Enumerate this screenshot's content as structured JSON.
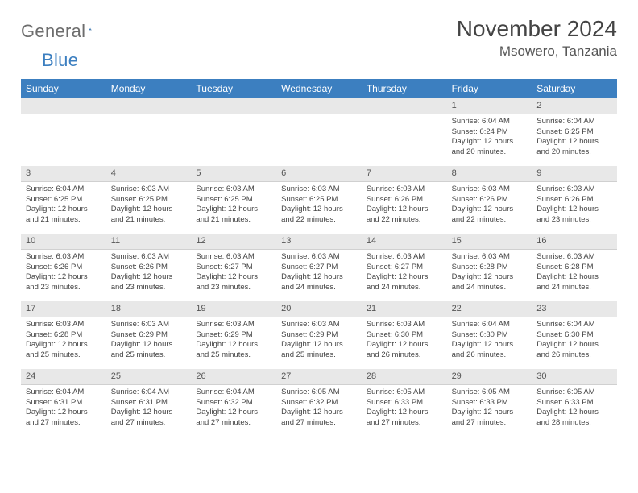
{
  "logo": {
    "word1": "General",
    "word2": "Blue"
  },
  "title": "November 2024",
  "location": "Msowero, Tanzania",
  "dayNames": [
    "Sunday",
    "Monday",
    "Tuesday",
    "Wednesday",
    "Thursday",
    "Friday",
    "Saturday"
  ],
  "colors": {
    "headerBg": "#3c7fc0",
    "headerText": "#ffffff",
    "dayNumBg": "#e8e8e8",
    "bodyText": "#444444"
  },
  "startOffset": 5,
  "days": [
    {
      "n": 1,
      "sr": "6:04 AM",
      "ss": "6:24 PM",
      "dl": "12 hours and 20 minutes."
    },
    {
      "n": 2,
      "sr": "6:04 AM",
      "ss": "6:25 PM",
      "dl": "12 hours and 20 minutes."
    },
    {
      "n": 3,
      "sr": "6:04 AM",
      "ss": "6:25 PM",
      "dl": "12 hours and 21 minutes."
    },
    {
      "n": 4,
      "sr": "6:03 AM",
      "ss": "6:25 PM",
      "dl": "12 hours and 21 minutes."
    },
    {
      "n": 5,
      "sr": "6:03 AM",
      "ss": "6:25 PM",
      "dl": "12 hours and 21 minutes."
    },
    {
      "n": 6,
      "sr": "6:03 AM",
      "ss": "6:25 PM",
      "dl": "12 hours and 22 minutes."
    },
    {
      "n": 7,
      "sr": "6:03 AM",
      "ss": "6:26 PM",
      "dl": "12 hours and 22 minutes."
    },
    {
      "n": 8,
      "sr": "6:03 AM",
      "ss": "6:26 PM",
      "dl": "12 hours and 22 minutes."
    },
    {
      "n": 9,
      "sr": "6:03 AM",
      "ss": "6:26 PM",
      "dl": "12 hours and 23 minutes."
    },
    {
      "n": 10,
      "sr": "6:03 AM",
      "ss": "6:26 PM",
      "dl": "12 hours and 23 minutes."
    },
    {
      "n": 11,
      "sr": "6:03 AM",
      "ss": "6:26 PM",
      "dl": "12 hours and 23 minutes."
    },
    {
      "n": 12,
      "sr": "6:03 AM",
      "ss": "6:27 PM",
      "dl": "12 hours and 23 minutes."
    },
    {
      "n": 13,
      "sr": "6:03 AM",
      "ss": "6:27 PM",
      "dl": "12 hours and 24 minutes."
    },
    {
      "n": 14,
      "sr": "6:03 AM",
      "ss": "6:27 PM",
      "dl": "12 hours and 24 minutes."
    },
    {
      "n": 15,
      "sr": "6:03 AM",
      "ss": "6:28 PM",
      "dl": "12 hours and 24 minutes."
    },
    {
      "n": 16,
      "sr": "6:03 AM",
      "ss": "6:28 PM",
      "dl": "12 hours and 24 minutes."
    },
    {
      "n": 17,
      "sr": "6:03 AM",
      "ss": "6:28 PM",
      "dl": "12 hours and 25 minutes."
    },
    {
      "n": 18,
      "sr": "6:03 AM",
      "ss": "6:29 PM",
      "dl": "12 hours and 25 minutes."
    },
    {
      "n": 19,
      "sr": "6:03 AM",
      "ss": "6:29 PM",
      "dl": "12 hours and 25 minutes."
    },
    {
      "n": 20,
      "sr": "6:03 AM",
      "ss": "6:29 PM",
      "dl": "12 hours and 25 minutes."
    },
    {
      "n": 21,
      "sr": "6:03 AM",
      "ss": "6:30 PM",
      "dl": "12 hours and 26 minutes."
    },
    {
      "n": 22,
      "sr": "6:04 AM",
      "ss": "6:30 PM",
      "dl": "12 hours and 26 minutes."
    },
    {
      "n": 23,
      "sr": "6:04 AM",
      "ss": "6:30 PM",
      "dl": "12 hours and 26 minutes."
    },
    {
      "n": 24,
      "sr": "6:04 AM",
      "ss": "6:31 PM",
      "dl": "12 hours and 27 minutes."
    },
    {
      "n": 25,
      "sr": "6:04 AM",
      "ss": "6:31 PM",
      "dl": "12 hours and 27 minutes."
    },
    {
      "n": 26,
      "sr": "6:04 AM",
      "ss": "6:32 PM",
      "dl": "12 hours and 27 minutes."
    },
    {
      "n": 27,
      "sr": "6:05 AM",
      "ss": "6:32 PM",
      "dl": "12 hours and 27 minutes."
    },
    {
      "n": 28,
      "sr": "6:05 AM",
      "ss": "6:33 PM",
      "dl": "12 hours and 27 minutes."
    },
    {
      "n": 29,
      "sr": "6:05 AM",
      "ss": "6:33 PM",
      "dl": "12 hours and 27 minutes."
    },
    {
      "n": 30,
      "sr": "6:05 AM",
      "ss": "6:33 PM",
      "dl": "12 hours and 28 minutes."
    }
  ],
  "labels": {
    "sunrise": "Sunrise:",
    "sunset": "Sunset:",
    "daylight": "Daylight:"
  }
}
